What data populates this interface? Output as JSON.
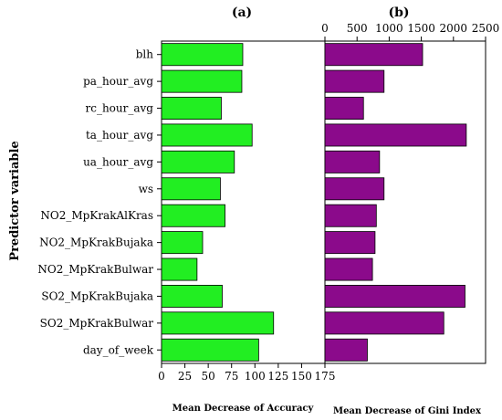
{
  "chart_data": [
    {
      "id": "a",
      "type": "bar",
      "orientation": "horizontal",
      "title": "(a)",
      "ylabel": "Predictor variable",
      "xlabel": "Mean Decrease of Accuracy",
      "categories": [
        "blh",
        "pa_hour_avg",
        "rc_hour_avg",
        "ta_hour_avg",
        "ua_hour_avg",
        "ws",
        "NO2_MpKrakAlKras",
        "NO2_MpKrakBujaka",
        "NO2_MpKrakBulwar",
        "SO2_MpKrakBujaka",
        "SO2_MpKrakBulwar",
        "day_of_week"
      ],
      "values": [
        87,
        86,
        64,
        97,
        78,
        63,
        68,
        44,
        38,
        65,
        120,
        104
      ],
      "xlim": [
        0,
        175
      ],
      "xticks": [
        "0",
        "25",
        "50",
        "75",
        "100",
        "125",
        "150",
        "175"
      ],
      "xtick_values": [
        0,
        25,
        50,
        75,
        100,
        125,
        150,
        175
      ],
      "bar_color": "#22ee22",
      "axis_position": "bottom"
    },
    {
      "id": "b",
      "type": "bar",
      "orientation": "horizontal",
      "title": "(b)",
      "xlabel": "Mean Decrease of Gini Index",
      "categories": [
        "blh",
        "pa_hour_avg",
        "rc_hour_avg",
        "ta_hour_avg",
        "ua_hour_avg",
        "ws",
        "NO2_MpKrakAlKras",
        "NO2_MpKrakBujaka",
        "NO2_MpKrakBulwar",
        "SO2_MpKrakBujaka",
        "SO2_MpKrakBulwar",
        "day_of_week"
      ],
      "values": [
        1520,
        920,
        600,
        2200,
        850,
        920,
        800,
        780,
        740,
        2180,
        1850,
        660
      ],
      "xlim": [
        0,
        2500
      ],
      "xticks": [
        "0",
        "500",
        "1000",
        "1500",
        "2000",
        "2500"
      ],
      "xtick_values": [
        0,
        500,
        1000,
        1500,
        2000,
        2500
      ],
      "bar_color": "#8b0a8b",
      "axis_position": "top"
    }
  ]
}
